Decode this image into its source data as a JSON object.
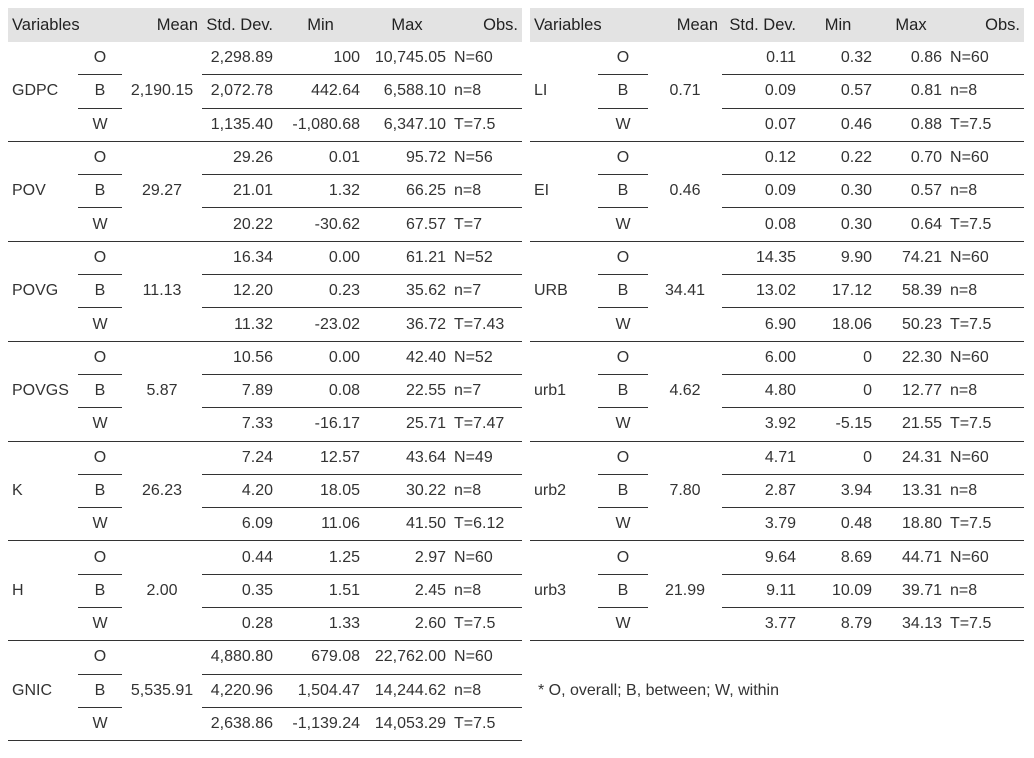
{
  "headers": [
    "Variables",
    "Mean",
    "Std. Dev.",
    "Min",
    "Max",
    "Obs."
  ],
  "left": [
    {
      "var": "GDPC",
      "mean": "2,190.15",
      "rows": [
        [
          "O",
          "2,298.89",
          "100",
          "10,745.05",
          "N=60"
        ],
        [
          "B",
          "2,072.78",
          "442.64",
          "6,588.10",
          "n=8"
        ],
        [
          "W",
          "1,135.40",
          "-1,080.68",
          "6,347.10",
          "T=7.5"
        ]
      ]
    },
    {
      "var": "POV",
      "mean": "29.27",
      "rows": [
        [
          "O",
          "29.26",
          "0.01",
          "95.72",
          "N=56"
        ],
        [
          "B",
          "21.01",
          "1.32",
          "66.25",
          "n=8"
        ],
        [
          "W",
          "20.22",
          "-30.62",
          "67.57",
          "T=7"
        ]
      ]
    },
    {
      "var": "POVG",
      "mean": "11.13",
      "rows": [
        [
          "O",
          "16.34",
          "0.00",
          "61.21",
          "N=52"
        ],
        [
          "B",
          "12.20",
          "0.23",
          "35.62",
          "n=7"
        ],
        [
          "W",
          "11.32",
          "-23.02",
          "36.72",
          "T=7.43"
        ]
      ]
    },
    {
      "var": "POVGS",
      "mean": "5.87",
      "rows": [
        [
          "O",
          "10.56",
          "0.00",
          "42.40",
          "N=52"
        ],
        [
          "B",
          "7.89",
          "0.08",
          "22.55",
          "n=7"
        ],
        [
          "W",
          "7.33",
          "-16.17",
          "25.71",
          "T=7.47"
        ]
      ]
    },
    {
      "var": "K",
      "mean": "26.23",
      "rows": [
        [
          "O",
          "7.24",
          "12.57",
          "43.64",
          "N=49"
        ],
        [
          "B",
          "4.20",
          "18.05",
          "30.22",
          "n=8"
        ],
        [
          "W",
          "6.09",
          "11.06",
          "41.50",
          "T=6.12"
        ]
      ]
    },
    {
      "var": "H",
      "mean": "2.00",
      "rows": [
        [
          "O",
          "0.44",
          "1.25",
          "2.97",
          "N=60"
        ],
        [
          "B",
          "0.35",
          "1.51",
          "2.45",
          "n=8"
        ],
        [
          "W",
          "0.28",
          "1.33",
          "2.60",
          "T=7.5"
        ]
      ]
    },
    {
      "var": "GNIC",
      "mean": "5,535.91",
      "rows": [
        [
          "O",
          "4,880.80",
          "679.08",
          "22,762.00",
          "N=60"
        ],
        [
          "B",
          "4,220.96",
          "1,504.47",
          "14,244.62",
          "n=8"
        ],
        [
          "W",
          "2,638.86",
          "-1,139.24",
          "14,053.29",
          "T=7.5"
        ]
      ]
    }
  ],
  "right": [
    {
      "var": "LI",
      "mean": "0.71",
      "rows": [
        [
          "O",
          "0.11",
          "0.32",
          "0.86",
          "N=60"
        ],
        [
          "B",
          "0.09",
          "0.57",
          "0.81",
          "n=8"
        ],
        [
          "W",
          "0.07",
          "0.46",
          "0.88",
          "T=7.5"
        ]
      ]
    },
    {
      "var": "EI",
      "mean": "0.46",
      "rows": [
        [
          "O",
          "0.12",
          "0.22",
          "0.70",
          "N=60"
        ],
        [
          "B",
          "0.09",
          "0.30",
          "0.57",
          "n=8"
        ],
        [
          "W",
          "0.08",
          "0.30",
          "0.64",
          "T=7.5"
        ]
      ]
    },
    {
      "var": "URB",
      "mean": "34.41",
      "rows": [
        [
          "O",
          "14.35",
          "9.90",
          "74.21",
          "N=60"
        ],
        [
          "B",
          "13.02",
          "17.12",
          "58.39",
          "n=8"
        ],
        [
          "W",
          "6.90",
          "18.06",
          "50.23",
          "T=7.5"
        ]
      ]
    },
    {
      "var": "urb1",
      "mean": "4.62",
      "rows": [
        [
          "O",
          "6.00",
          "0",
          "22.30",
          "N=60"
        ],
        [
          "B",
          "4.80",
          "0",
          "12.77",
          "n=8"
        ],
        [
          "W",
          "3.92",
          "-5.15",
          "21.55",
          "T=7.5"
        ]
      ]
    },
    {
      "var": "urb2",
      "mean": "7.80",
      "rows": [
        [
          "O",
          "4.71",
          "0",
          "24.31",
          "N=60"
        ],
        [
          "B",
          "2.87",
          "3.94",
          "13.31",
          "n=8"
        ],
        [
          "W",
          "3.79",
          "0.48",
          "18.80",
          "T=7.5"
        ]
      ]
    },
    {
      "var": "urb3",
      "mean": "21.99",
      "rows": [
        [
          "O",
          "9.64",
          "8.69",
          "44.71",
          "N=60"
        ],
        [
          "B",
          "9.11",
          "10.09",
          "39.71",
          "n=8"
        ],
        [
          "W",
          "3.77",
          "8.79",
          "34.13",
          "T=7.5"
        ]
      ]
    }
  ],
  "footnote": "* O, overall; B, between; W, within"
}
